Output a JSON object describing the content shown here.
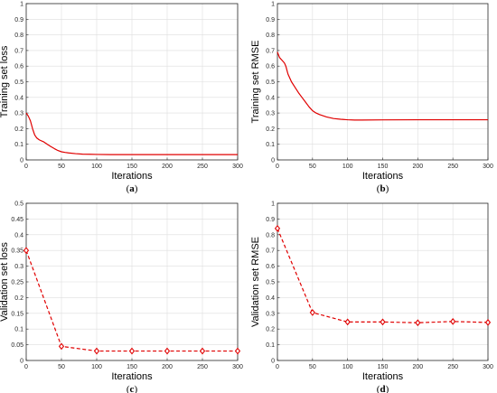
{
  "chart_data": [
    {
      "type": "line",
      "panel": "a",
      "caption": "(a)",
      "xlabel": "Iterations",
      "ylabel": "Training set loss",
      "xlim": [
        0,
        300
      ],
      "ylim": [
        0,
        1
      ],
      "xticks": [
        0,
        50,
        100,
        150,
        200,
        250,
        300
      ],
      "yticks": [
        0,
        0.1,
        0.2,
        0.3,
        0.4,
        0.5,
        0.6,
        0.7,
        0.8,
        0.9,
        1
      ],
      "ytick_labels": [
        "0",
        "0.1",
        "0.2",
        "0.3",
        "0.4",
        "0.5",
        "0.6",
        "0.7",
        "0.8",
        "0.9",
        "1"
      ],
      "grid": true,
      "color": "#e00000",
      "line_style": "solid",
      "markers": false,
      "x": [
        0,
        3,
        6,
        9,
        12,
        15,
        18,
        20,
        25,
        30,
        35,
        40,
        45,
        50,
        55,
        60,
        70,
        80,
        90,
        100,
        120,
        150,
        200,
        250,
        300
      ],
      "y": [
        0.3,
        0.28,
        0.25,
        0.2,
        0.16,
        0.14,
        0.13,
        0.125,
        0.115,
        0.1,
        0.085,
        0.072,
        0.06,
        0.052,
        0.048,
        0.045,
        0.04,
        0.037,
        0.036,
        0.035,
        0.034,
        0.034,
        0.034,
        0.034,
        0.034
      ]
    },
    {
      "type": "line",
      "panel": "b",
      "caption": "(b)",
      "xlabel": "Iterations",
      "ylabel": "Training set RMSE",
      "xlim": [
        0,
        300
      ],
      "ylim": [
        0,
        1
      ],
      "xticks": [
        0,
        50,
        100,
        150,
        200,
        250,
        300
      ],
      "yticks": [
        0,
        0.1,
        0.2,
        0.3,
        0.4,
        0.5,
        0.6,
        0.7,
        0.8,
        0.9,
        1
      ],
      "ytick_labels": [
        "0",
        "0.1",
        "0.2",
        "0.3",
        "0.4",
        "0.5",
        "0.6",
        "0.7",
        "0.8",
        "0.9",
        "1"
      ],
      "grid": true,
      "color": "#e00000",
      "line_style": "solid",
      "markers": false,
      "x": [
        0,
        3,
        6,
        10,
        12,
        15,
        20,
        25,
        30,
        35,
        40,
        45,
        50,
        55,
        60,
        70,
        80,
        90,
        100,
        110,
        120,
        150,
        200,
        250,
        300
      ],
      "y": [
        0.69,
        0.655,
        0.64,
        0.62,
        0.6,
        0.55,
        0.5,
        0.465,
        0.43,
        0.4,
        0.37,
        0.34,
        0.315,
        0.3,
        0.29,
        0.275,
        0.265,
        0.26,
        0.257,
        0.255,
        0.255,
        0.256,
        0.257,
        0.257,
        0.257
      ]
    },
    {
      "type": "line",
      "panel": "c",
      "caption": "(c)",
      "xlabel": "Iterations",
      "ylabel": "Validation set loss",
      "xlim": [
        0,
        300
      ],
      "ylim": [
        0,
        0.5
      ],
      "xticks": [
        0,
        50,
        100,
        150,
        200,
        250,
        300
      ],
      "yticks": [
        0,
        0.05,
        0.1,
        0.15,
        0.2,
        0.25,
        0.3,
        0.35,
        0.4,
        0.45,
        0.5
      ],
      "ytick_labels": [
        "0",
        "0.05",
        "0.1",
        "0.15",
        "0.2",
        "0.25",
        "0.3",
        "0.35",
        "0.4",
        "0.45",
        "0.5"
      ],
      "grid": true,
      "color": "#e00000",
      "line_style": "dashed",
      "markers": true,
      "marker": "diamond",
      "x": [
        0,
        50,
        100,
        150,
        200,
        250,
        300
      ],
      "y": [
        0.35,
        0.045,
        0.03,
        0.03,
        0.03,
        0.03,
        0.03
      ]
    },
    {
      "type": "line",
      "panel": "d",
      "caption": "(d)",
      "xlabel": "Iterations",
      "ylabel": "Validation set RMSE",
      "xlim": [
        0,
        300
      ],
      "ylim": [
        0,
        1
      ],
      "xticks": [
        0,
        50,
        100,
        150,
        200,
        250,
        300
      ],
      "yticks": [
        0,
        0.1,
        0.2,
        0.3,
        0.4,
        0.5,
        0.6,
        0.7,
        0.8,
        0.9,
        1
      ],
      "ytick_labels": [
        "0",
        "0.1",
        "0.2",
        "0.3",
        "0.4",
        "0.5",
        "0.6",
        "0.7",
        "0.8",
        "0.9",
        "1"
      ],
      "grid": true,
      "color": "#e00000",
      "line_style": "dashed",
      "markers": true,
      "marker": "diamond",
      "x": [
        0,
        50,
        100,
        150,
        200,
        250,
        300
      ],
      "y": [
        0.84,
        0.305,
        0.245,
        0.245,
        0.24,
        0.248,
        0.242
      ]
    }
  ]
}
